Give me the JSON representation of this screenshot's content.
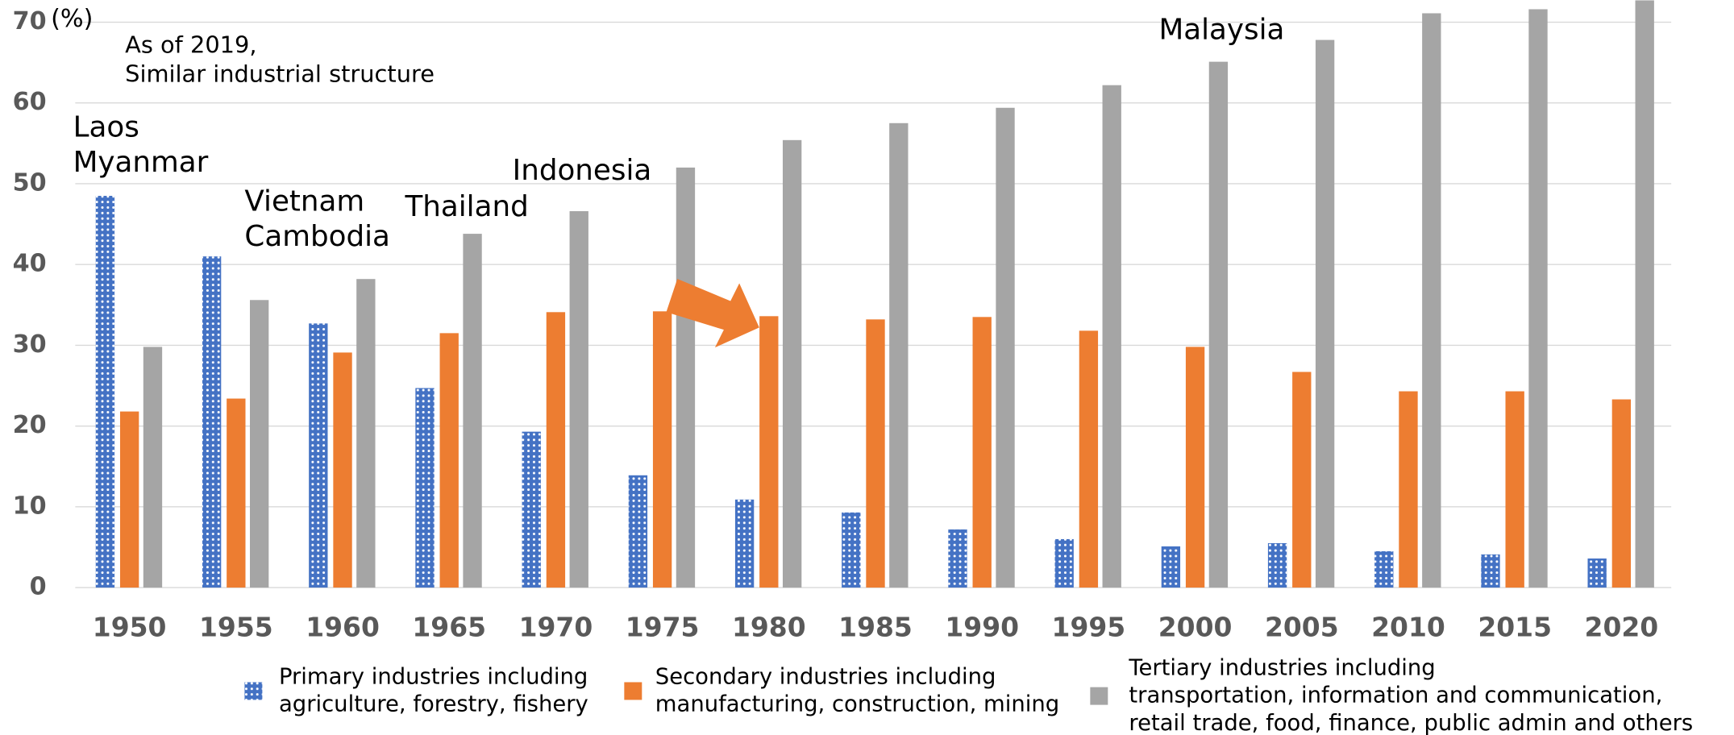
{
  "chart_data": {
    "type": "bar",
    "unit_label": "(%)",
    "categories": [
      "1950",
      "1955",
      "1960",
      "1965",
      "1970",
      "1975",
      "1980",
      "1985",
      "1990",
      "1995",
      "2000",
      "2005",
      "2010",
      "2015",
      "2020"
    ],
    "series": [
      {
        "name": "Primary industries including\nagriculture, forestry, fishery",
        "color": "#4472c4",
        "pattern": "dots",
        "values": [
          48.5,
          41.0,
          32.7,
          24.7,
          19.3,
          13.9,
          10.9,
          9.3,
          7.2,
          6.0,
          5.1,
          5.5,
          4.5,
          4.1,
          3.6
        ]
      },
      {
        "name": "Secondary industries including\nmanufacturing, construction, mining",
        "color": "#ed7d31",
        "values": [
          21.8,
          23.4,
          29.1,
          31.5,
          34.1,
          34.2,
          33.6,
          33.2,
          33.5,
          31.8,
          29.8,
          26.7,
          24.3,
          24.3,
          23.3
        ]
      },
      {
        "name": "Tertiary industries including\ntransportation, information and communication,\nretail trade, food, finance, public admin and others",
        "color": "#a5a5a5",
        "values": [
          29.8,
          35.6,
          38.2,
          43.8,
          46.6,
          52.0,
          55.4,
          57.5,
          59.4,
          62.2,
          65.1,
          67.8,
          71.1,
          71.6,
          72.7
        ]
      }
    ],
    "ylim": [
      0,
      70
    ],
    "yticks": [
      0,
      10,
      20,
      30,
      40,
      50,
      60,
      70
    ],
    "grid": true,
    "legend": "bottom",
    "annotations": [
      "As of 2019,\nSimilar industrial structure",
      "Laos\nMyanmar",
      "Vietnam\nCambodia",
      "Thailand",
      "Indonesia",
      "Malaysia"
    ]
  }
}
